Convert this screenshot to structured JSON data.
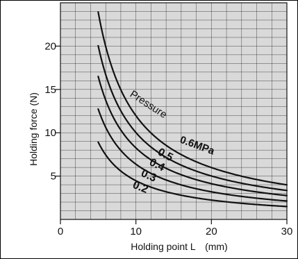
{
  "chart_data": {
    "type": "line",
    "title": "",
    "xlabel": "Holding point L",
    "xlabel_unit": "(mm)",
    "ylabel": "Holding force (N)",
    "xlim": [
      0,
      30
    ],
    "ylim": [
      0,
      25
    ],
    "x_ticks": [
      0,
      10,
      20,
      30
    ],
    "y_ticks": [
      5,
      10,
      15,
      20
    ],
    "grid": true,
    "background": "#d9d9d9",
    "line_color": "#111111",
    "pressure_label": "Pressure",
    "series": [
      {
        "name": "0.6MPa",
        "x": [
          5,
          6,
          7,
          8,
          10,
          12,
          15,
          20,
          25,
          30
        ],
        "y": [
          23.5,
          19.8,
          17.0,
          14.9,
          11.9,
          9.9,
          8.0,
          6.1,
          4.9,
          4.0
        ]
      },
      {
        "name": "0.5",
        "x": [
          5,
          6,
          7,
          8,
          10,
          12,
          15,
          20,
          25,
          30
        ],
        "y": [
          19.8,
          16.6,
          14.3,
          12.5,
          10.0,
          8.3,
          6.7,
          5.1,
          4.1,
          3.3
        ]
      },
      {
        "name": "0.4",
        "x": [
          5,
          6,
          7,
          8,
          10,
          12,
          15,
          20,
          25,
          30
        ],
        "y": [
          16.2,
          13.6,
          11.7,
          10.2,
          8.2,
          6.8,
          5.5,
          4.2,
          3.4,
          2.8
        ]
      },
      {
        "name": "0.3",
        "x": [
          5,
          6,
          7,
          8,
          10,
          12,
          15,
          20,
          25,
          30
        ],
        "y": [
          11.8,
          10.1,
          8.8,
          7.8,
          6.3,
          5.3,
          4.3,
          3.3,
          2.7,
          2.3
        ]
      },
      {
        "name": "0.2",
        "x": [
          5,
          6,
          7,
          8,
          10,
          12,
          15,
          20,
          25,
          30
        ],
        "y": [
          8.3,
          7.1,
          6.2,
          5.5,
          4.4,
          3.7,
          3.0,
          2.3,
          1.9,
          1.6
        ]
      }
    ]
  }
}
